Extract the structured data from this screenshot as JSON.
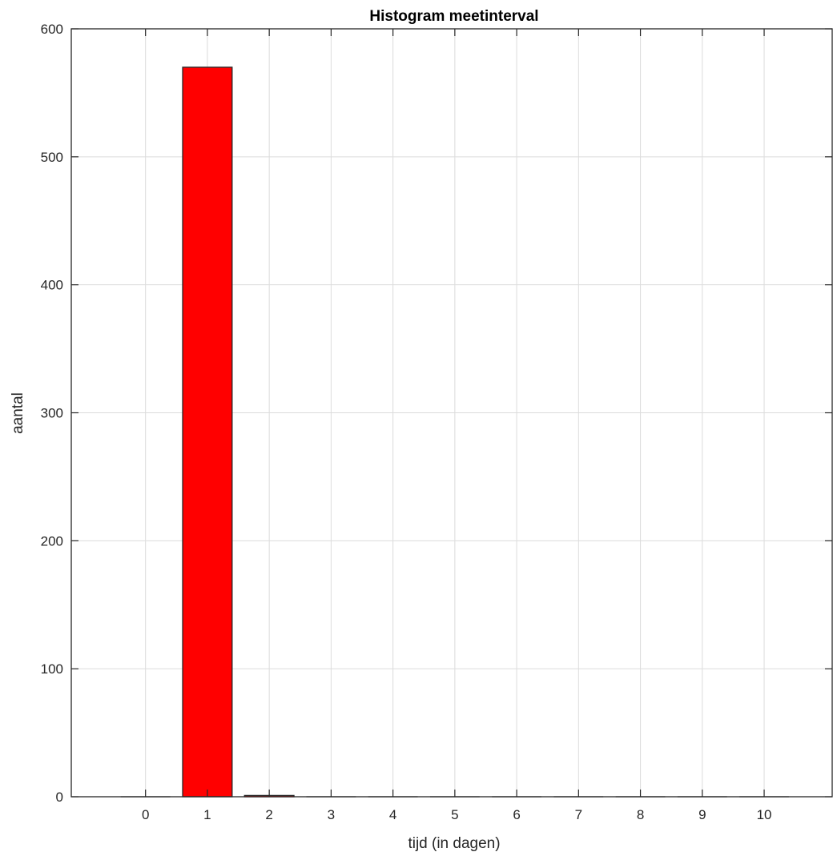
{
  "chart_data": {
    "type": "bar",
    "title": "Histogram meetinterval",
    "xlabel": "tijd (in dagen)",
    "ylabel": "aantal",
    "x_ticks": [
      "0",
      "1",
      "2",
      "3",
      "4",
      "5",
      "6",
      "7",
      "8",
      "9",
      "10"
    ],
    "y_ticks": [
      "0",
      "100",
      "200",
      "300",
      "400",
      "500",
      "600"
    ],
    "xlim": [
      -1.2,
      11.1
    ],
    "ylim": [
      0,
      600
    ],
    "grid": true,
    "bar_width": 0.8,
    "bars": [
      {
        "x": 0,
        "value": 0
      },
      {
        "x": 1,
        "value": 570
      },
      {
        "x": 2,
        "value": 1
      },
      {
        "x": 3,
        "value": 0
      },
      {
        "x": 4,
        "value": 0
      },
      {
        "x": 5,
        "value": 0
      },
      {
        "x": 6,
        "value": 0
      },
      {
        "x": 7,
        "value": 0
      },
      {
        "x": 8,
        "value": 0
      },
      {
        "x": 9,
        "value": 0
      },
      {
        "x": 10,
        "value": 0
      }
    ],
    "bar_color": "#ff0000",
    "bar_edge_color": "#262626",
    "grid_color": "#dcdcdc",
    "axis_color": "#262626"
  }
}
